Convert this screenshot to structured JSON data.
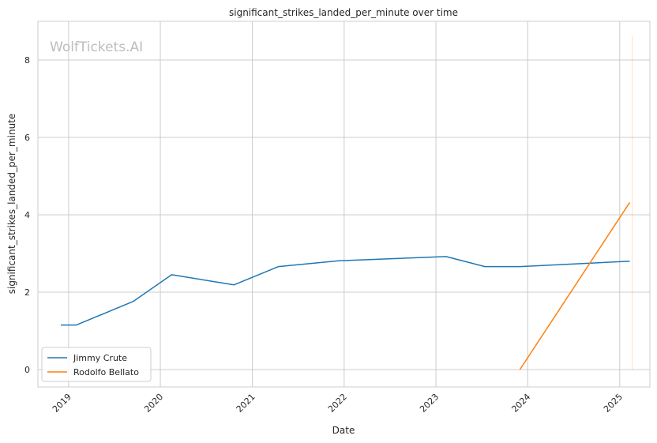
{
  "chart_data": {
    "type": "line",
    "title": "significant_strikes_landed_per_minute over time",
    "xlabel": "Date",
    "ylabel": "significant_strikes_landed_per_minute",
    "watermark": "WolfTickets.AI",
    "x_ticks": [
      "2019",
      "2020",
      "2021",
      "2022",
      "2023",
      "2024",
      "2025"
    ],
    "y_ticks": [
      "0",
      "2",
      "4",
      "6",
      "8"
    ],
    "xlim": [
      "2018-09-01",
      "2025-05-01"
    ],
    "ylim": [
      -0.45,
      9.0
    ],
    "grid": true,
    "legend_position": "lower-left",
    "series": [
      {
        "name": "Jimmy Crute",
        "color": "#1f77b4",
        "points": [
          {
            "x": "2018-12-01",
            "y": 1.15
          },
          {
            "x": "2019-02-01",
            "y": 1.15
          },
          {
            "x": "2019-09-15",
            "y": 1.76
          },
          {
            "x": "2020-02-15",
            "y": 2.45
          },
          {
            "x": "2020-10-20",
            "y": 2.19
          },
          {
            "x": "2021-04-15",
            "y": 2.66
          },
          {
            "x": "2021-12-10",
            "y": 2.81
          },
          {
            "x": "2023-02-10",
            "y": 2.92
          },
          {
            "x": "2023-07-15",
            "y": 2.66
          },
          {
            "x": "2023-12-01",
            "y": 2.66
          },
          {
            "x": "2025-02-10",
            "y": 2.8
          }
        ]
      },
      {
        "name": "Rodolfo Bellato",
        "color": "#ff7f0e",
        "points": [
          {
            "x": "2023-12-01",
            "y": 0.0
          },
          {
            "x": "2025-02-10",
            "y": 4.32
          }
        ]
      }
    ],
    "annotations": [
      {
        "type": "vline",
        "x": "2025-02-20",
        "ymin": 0.0,
        "ymax": 8.62,
        "color": "#ff7f0e"
      }
    ]
  }
}
